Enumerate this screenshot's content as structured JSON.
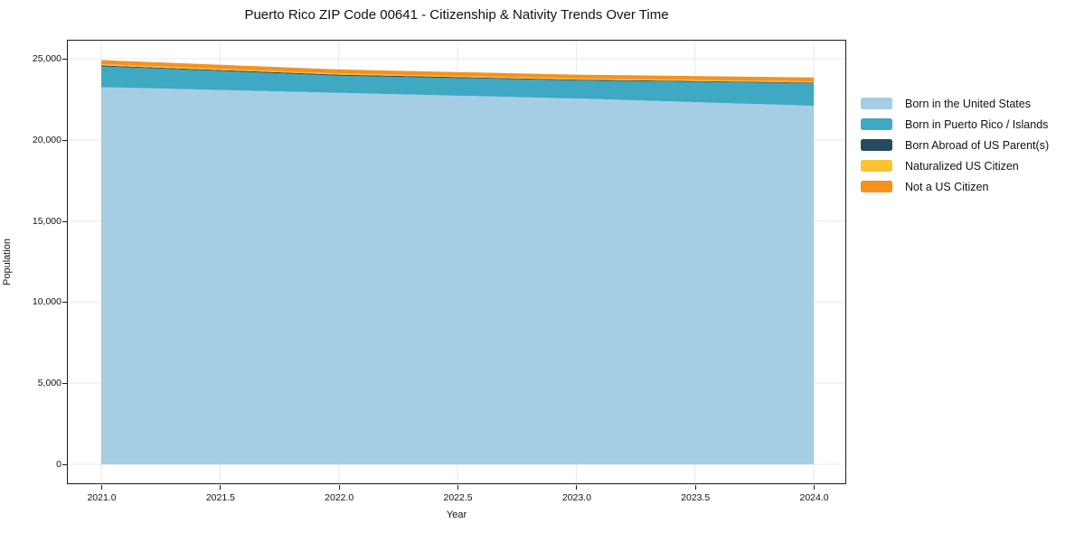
{
  "title": "Puerto Rico ZIP Code 00641 - Citizenship & Nativity Trends Over Time",
  "chart_data": {
    "type": "area",
    "stacked": true,
    "title": "Puerto Rico ZIP Code 00641 - Citizenship & Nativity Trends Over Time",
    "xlabel": "Year",
    "ylabel": "Population",
    "x": [
      2021,
      2022,
      2023,
      2024
    ],
    "series": [
      {
        "name": "Born in the United States",
        "color": "#a5cee4",
        "values": [
          23250,
          22900,
          22550,
          22100
        ]
      },
      {
        "name": "Born in Puerto Rico / Islands",
        "color": "#3fa8c3",
        "values": [
          1280,
          1060,
          1110,
          1390
        ]
      },
      {
        "name": "Born Abroad of US Parent(s)",
        "color": "#254b5e",
        "values": [
          60,
          60,
          55,
          45
        ]
      },
      {
        "name": "Naturalized US Citizen",
        "color": "#fcc330",
        "values": [
          75,
          70,
          65,
          70
        ]
      },
      {
        "name": "Not a US Citizen",
        "color": "#f6911e",
        "values": [
          250,
          250,
          240,
          240
        ]
      }
    ],
    "stack_totals": [
      24915,
      24340,
      24020,
      23845
    ],
    "xlim": [
      2020.859,
      2024.133
    ],
    "ylim": [
      -1170,
      26115
    ],
    "x_tick_values": [
      2021.0,
      2021.5,
      2022.0,
      2022.5,
      2023.0,
      2023.5,
      2024.0
    ],
    "x_tick_labels": [
      "2021.0",
      "2021.5",
      "2022.0",
      "2022.5",
      "2023.0",
      "2023.5",
      "2024.0"
    ],
    "y_tick_values": [
      0,
      5000,
      10000,
      15000,
      20000,
      25000
    ],
    "y_tick_labels": [
      "0",
      "5,000",
      "10,000",
      "15,000",
      "20,000",
      "25,000"
    ],
    "grid": true,
    "grid_color": "#e9e9e9",
    "axis_color": "#1a1a1a",
    "legend_position": "right-outside"
  }
}
